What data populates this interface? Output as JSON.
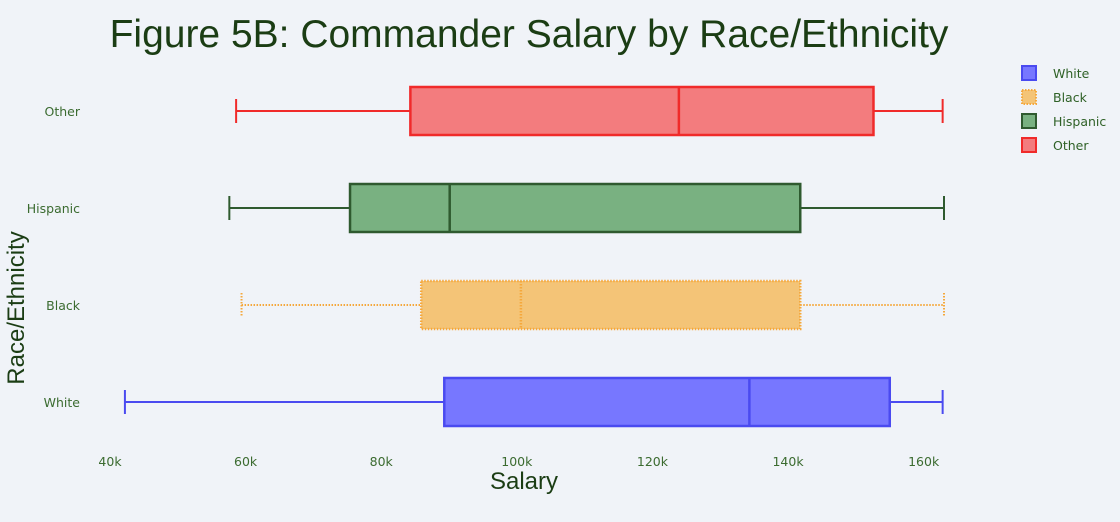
{
  "chart_data": {
    "type": "box",
    "orientation": "horizontal",
    "title": "Figure 5B: Commander Salary by Race/Ethnicity",
    "xlabel": "Salary",
    "ylabel": "Race/Ethnicity",
    "xlim": [
      40000,
      163000
    ],
    "x_ticks": [
      {
        "value": 40000,
        "label": "40k"
      },
      {
        "value": 60000,
        "label": "60k"
      },
      {
        "value": 80000,
        "label": "80k"
      },
      {
        "value": 100000,
        "label": "100k"
      },
      {
        "value": 120000,
        "label": "120k"
      },
      {
        "value": 140000,
        "label": "140k"
      },
      {
        "value": 160000,
        "label": "160k"
      }
    ],
    "categories": [
      "White",
      "Black",
      "Hispanic",
      "Other"
    ],
    "series": [
      {
        "name": "White",
        "category": "White",
        "color": "#4a4af0",
        "fill": "#7777ff",
        "min": 42200,
        "q1": 89300,
        "median": 134300,
        "q3": 155000,
        "max": 162800
      },
      {
        "name": "Black",
        "category": "Black",
        "color": "#f5a83c",
        "fill": "#f4c477",
        "min": 59400,
        "q1": 85900,
        "median": 100600,
        "q3": 141800,
        "max": 163000
      },
      {
        "name": "Hispanic",
        "category": "Hispanic",
        "color": "#2f5a2f",
        "fill": "#79b181",
        "min": 57600,
        "q1": 75400,
        "median": 90100,
        "q3": 141800,
        "max": 163000
      },
      {
        "name": "Other",
        "category": "Other",
        "color": "#f02a2a",
        "fill": "#f37c7e",
        "min": 58600,
        "q1": 84300,
        "median": 123900,
        "q3": 152600,
        "max": 162800
      }
    ],
    "legend": {
      "position": "top-right"
    },
    "grid": false
  }
}
